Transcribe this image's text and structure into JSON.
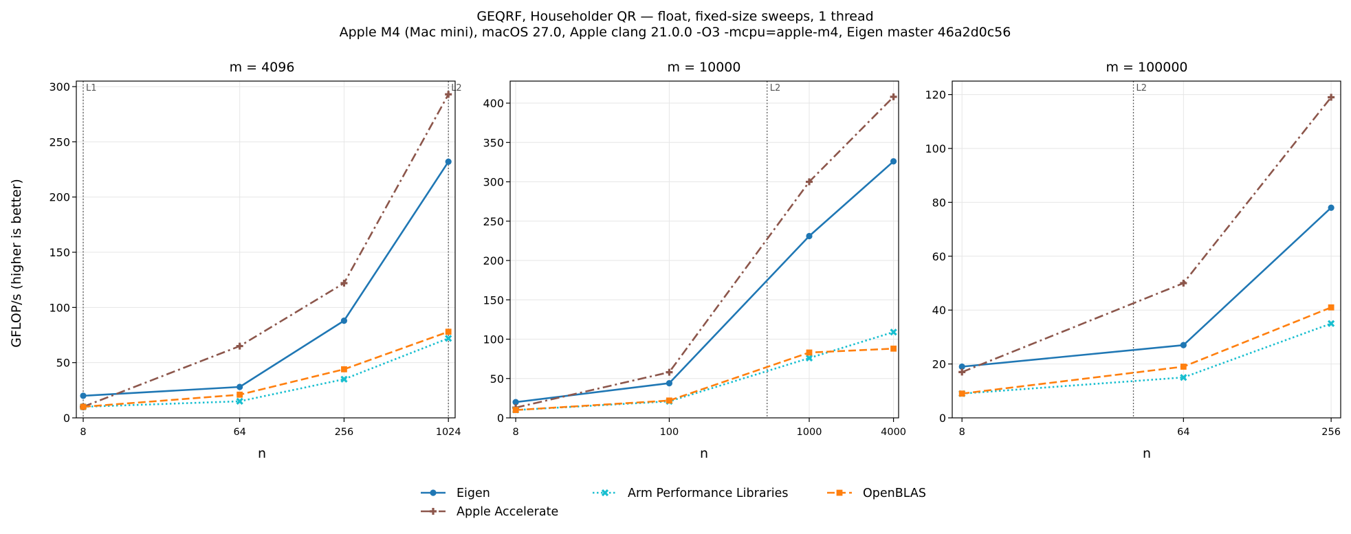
{
  "figure": {
    "title_line1": "GEQRF, Householder QR — float, fixed-size sweeps, 1 thread",
    "title_line2": "Apple M4 (Mac mini), macOS 27.0, Apple clang 21.0.0 -O3 -mcpu=apple-m4, Eigen master 46a2d0c56"
  },
  "series_styles": [
    {
      "name": "Eigen",
      "color": "#1f77b4",
      "dash": "solid",
      "marker": "circle"
    },
    {
      "name": "Apple Accelerate",
      "color": "#8c564b",
      "dash": "dashdot",
      "marker": "plus"
    },
    {
      "name": "Arm Performance Libraries",
      "color": "#17becf",
      "dash": "dotted",
      "marker": "x"
    },
    {
      "name": "OpenBLAS",
      "color": "#ff7f0e",
      "dash": "dashed",
      "marker": "square"
    }
  ],
  "legend": {
    "placement": "bottom-center",
    "items": [
      "Eigen",
      "Apple Accelerate",
      "Arm Performance Libraries",
      "OpenBLAS"
    ]
  },
  "chart_data": [
    {
      "type": "line",
      "title": "m = 4096",
      "xlabel": "n",
      "ylabel": "GFLOP/s (higher is better)",
      "xscale": "log",
      "xlim": [
        7.3,
        1120
      ],
      "x": [
        8,
        64,
        256,
        1024
      ],
      "x_ticks": [
        "8",
        "64",
        "256",
        "1024"
      ],
      "ylim": [
        0,
        305
      ],
      "y_ticks": [
        0,
        50,
        100,
        150,
        200,
        250,
        300
      ],
      "grid": true,
      "cache_lines": [
        {
          "label": "L1",
          "x": 8
        },
        {
          "label": "L2",
          "x": 1024
        }
      ],
      "series": [
        {
          "name": "Eigen",
          "values": [
            20,
            28,
            88,
            232
          ]
        },
        {
          "name": "Apple Accelerate",
          "values": [
            10,
            65,
            122,
            293
          ]
        },
        {
          "name": "Arm Performance Libraries",
          "values": [
            10,
            15,
            35,
            72
          ]
        },
        {
          "name": "OpenBLAS",
          "values": [
            10,
            21,
            44,
            78
          ]
        }
      ]
    },
    {
      "type": "line",
      "title": "m = 10000",
      "xlabel": "n",
      "ylabel": "",
      "xscale": "log",
      "xlim": [
        7.3,
        4350
      ],
      "x": [
        8,
        100,
        1000,
        4000
      ],
      "x_ticks": [
        "8",
        "100",
        "1000",
        "4000"
      ],
      "ylim": [
        0,
        428
      ],
      "y_ticks": [
        0,
        50,
        100,
        150,
        200,
        250,
        300,
        350,
        400
      ],
      "grid": true,
      "cache_lines": [
        {
          "label": "L2",
          "x": 500
        }
      ],
      "series": [
        {
          "name": "Eigen",
          "values": [
            20,
            44,
            231,
            326
          ]
        },
        {
          "name": "Apple Accelerate",
          "values": [
            13,
            58,
            300,
            408
          ]
        },
        {
          "name": "Arm Performance Libraries",
          "values": [
            10,
            21,
            76,
            109
          ]
        },
        {
          "name": "OpenBLAS",
          "values": [
            10,
            22,
            83,
            88
          ]
        }
      ]
    },
    {
      "type": "line",
      "title": "m = 100000",
      "xlabel": "n",
      "ylabel": "",
      "xscale": "log",
      "xlim": [
        7.3,
        280
      ],
      "x": [
        8,
        64,
        256
      ],
      "x_ticks": [
        "8",
        "64",
        "256"
      ],
      "ylim": [
        0,
        125
      ],
      "y_ticks": [
        0,
        20,
        40,
        60,
        80,
        100,
        120
      ],
      "grid": true,
      "cache_lines": [
        {
          "label": "L2",
          "x": 40
        }
      ],
      "series": [
        {
          "name": "Eigen",
          "values": [
            19,
            27,
            78
          ]
        },
        {
          "name": "Apple Accelerate",
          "values": [
            17,
            50,
            119
          ]
        },
        {
          "name": "Arm Performance Libraries",
          "values": [
            9,
            15,
            35
          ]
        },
        {
          "name": "OpenBLAS",
          "values": [
            9,
            19,
            41
          ]
        }
      ]
    }
  ]
}
